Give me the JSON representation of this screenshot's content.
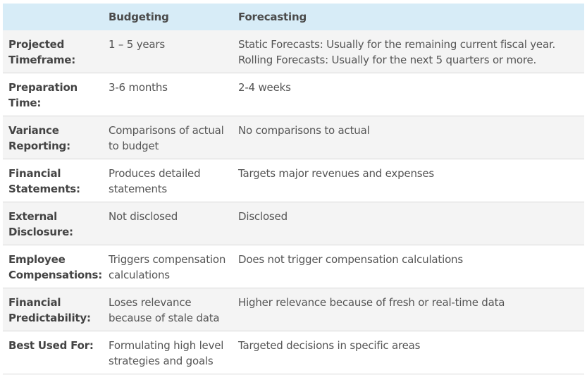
{
  "header": {
    "blank": "",
    "budgeting": "Budgeting",
    "forecasting": "Forecasting"
  },
  "rows": [
    {
      "label_lines": [
        "Projected",
        "Timeframe:"
      ],
      "budgeting": "1 – 5 years",
      "forecasting_lines": [
        "Static Forecasts: Usually for the remaining current fiscal year.",
        "Rolling Forecasts: Usually for the next 5 quarters or more."
      ]
    },
    {
      "label_lines": [
        "Preparation",
        "Time:"
      ],
      "budgeting": "3-6 months",
      "forecasting_lines": [
        "2-4 weeks"
      ]
    },
    {
      "label_lines": [
        "Variance",
        "Reporting:"
      ],
      "budgeting": "Comparisons of actual to budget",
      "forecasting_lines": [
        "No comparisons to actual"
      ]
    },
    {
      "label_lines": [
        "Financial",
        "Statements:"
      ],
      "budgeting": "Produces detailed statements",
      "forecasting_lines": [
        "Targets major revenues and expenses"
      ]
    },
    {
      "label_lines": [
        "External",
        "Disclosure:"
      ],
      "budgeting": "Not disclosed",
      "forecasting_lines": [
        "Disclosed"
      ]
    },
    {
      "label_lines": [
        "Employee",
        "Compensations:"
      ],
      "budgeting": "Triggers compensation calculations",
      "forecasting_lines": [
        "Does not trigger compensation calculations"
      ]
    },
    {
      "label_lines": [
        "Financial",
        "Predictability:"
      ],
      "budgeting": "Loses relevance because of stale data",
      "forecasting_lines": [
        "Higher relevance because of fresh or real-time data"
      ]
    },
    {
      "label_lines": [
        "Best Used For:"
      ],
      "budgeting": "Formulating high level strategies and goals",
      "forecasting_lines": [
        "Targeted decisions in specific areas"
      ]
    }
  ],
  "colors": {
    "header_bg": "#d7ecf7",
    "alt_row_bg": "#f4f4f4",
    "row_bg": "#ffffff",
    "divider": "#d8d8d8"
  }
}
